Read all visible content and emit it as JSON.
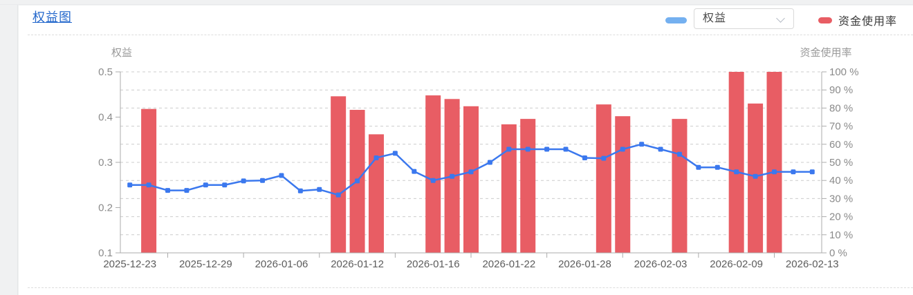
{
  "header": {
    "title": "权益图"
  },
  "legend": {
    "equity_swatch_color": "#74b0f0",
    "series_select_value": "权益",
    "usage_swatch_color": "#e85d64",
    "usage_label": "资金使用率"
  },
  "chart_data": {
    "type": "bar+line combo, dual y-axis",
    "x": [
      "2025-12-23",
      "2025-12-24",
      "2025-12-25",
      "2025-12-26",
      "2025-12-29",
      "2025-12-30",
      "2025-12-31",
      "2026-01-05",
      "2026-01-06",
      "2026-01-07",
      "2026-01-08",
      "2026-01-09",
      "2026-01-12",
      "2026-01-13",
      "2026-01-14",
      "2026-01-15",
      "2026-01-16",
      "2026-01-19",
      "2026-01-20",
      "2026-01-21",
      "2026-01-22",
      "2026-01-23",
      "2026-01-26",
      "2026-01-27",
      "2026-01-28",
      "2026-01-29",
      "2026-01-30",
      "2026-02-02",
      "2026-02-03",
      "2026-02-04",
      "2026-02-05",
      "2026-02-06",
      "2026-02-09",
      "2026-02-10",
      "2026-02-11",
      "2026-02-12",
      "2026-02-13"
    ],
    "x_axis": {
      "label_every": 4,
      "visible_labels": [
        "2025-12-23",
        "2025-12-29",
        "2026-01-06",
        "2026-01-12",
        "2026-01-16",
        "2026-01-22",
        "2026-01-28",
        "2026-02-03",
        "2026-02-09",
        "2026-02-13"
      ]
    },
    "left_axis": {
      "title": "权益",
      "min": 0.1,
      "max": 0.5,
      "tick_labels": [
        "0.5",
        "0.4",
        "0.3",
        "0.2",
        "0.1"
      ]
    },
    "right_axis": {
      "title": "资金使用率",
      "min": 0,
      "max": 100,
      "tick_labels": [
        "100 %",
        "90 %",
        "80 %",
        "70 %",
        "60 %",
        "50 %",
        "40 %",
        "30 %",
        "20 %",
        "10 %",
        "0 %"
      ]
    },
    "series": [
      {
        "name": "权益",
        "type": "line",
        "y_axis": "left",
        "color": "#3b78ee",
        "values": [
          0.25,
          0.25,
          0.238,
          0.238,
          0.25,
          0.25,
          0.259,
          0.26,
          0.271,
          0.237,
          0.24,
          0.228,
          0.259,
          0.31,
          0.32,
          0.28,
          0.26,
          0.269,
          0.279,
          0.3,
          0.329,
          0.329,
          0.329,
          0.329,
          0.31,
          0.309,
          0.329,
          0.34,
          0.329,
          0.318,
          0.289,
          0.289,
          0.279,
          0.269,
          0.279,
          0.279,
          0.279
        ]
      },
      {
        "name": "资金使用率",
        "type": "bar",
        "y_axis": "right",
        "color": "#e85d64",
        "values": [
          null,
          79.5,
          null,
          null,
          null,
          null,
          null,
          null,
          null,
          null,
          null,
          86.5,
          79,
          65.5,
          null,
          null,
          87,
          85,
          81,
          null,
          71,
          74,
          null,
          null,
          null,
          82,
          75.5,
          null,
          null,
          74,
          null,
          null,
          100,
          82.5,
          100,
          null,
          null
        ]
      }
    ],
    "grid": {
      "horizontal_dashed": true,
      "color": "#cccccc",
      "intervals": 10
    }
  }
}
